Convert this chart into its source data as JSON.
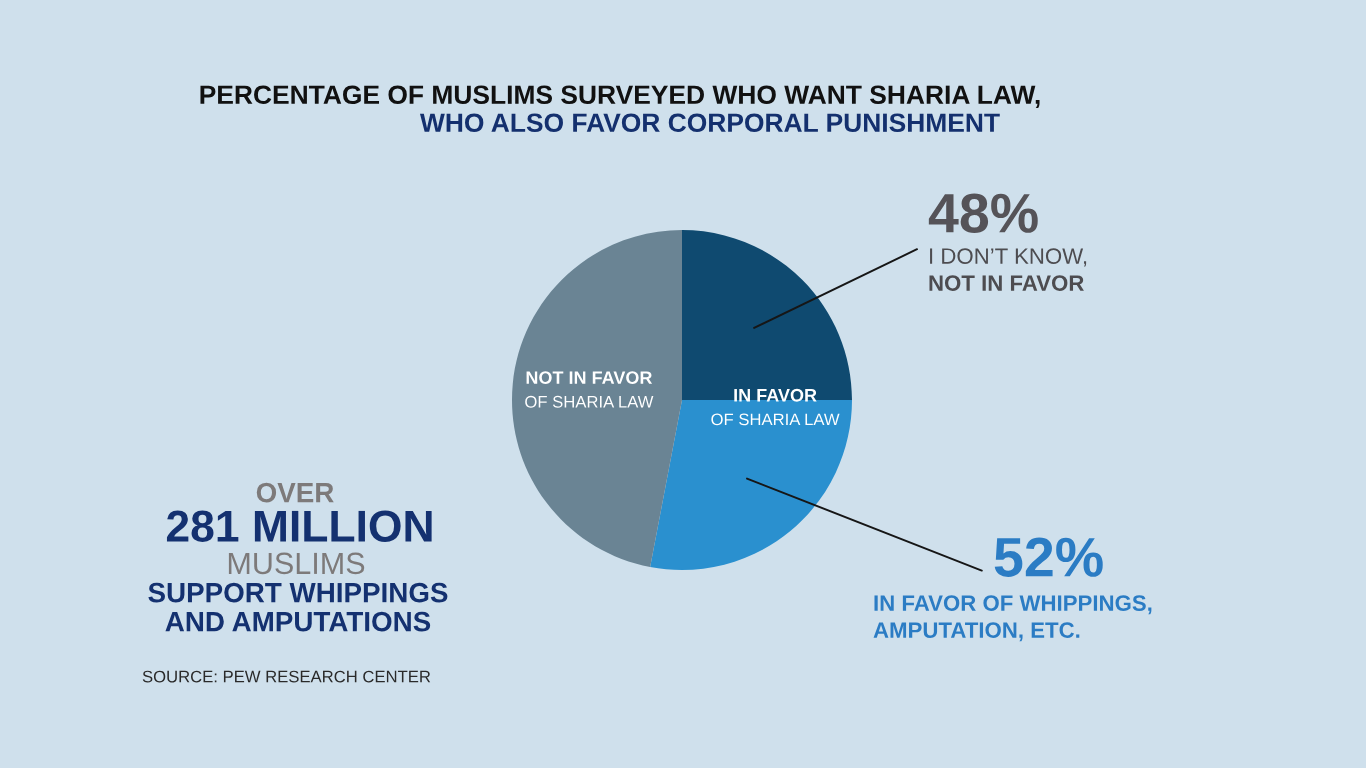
{
  "chart_data": {
    "type": "pie",
    "title": "PERCENTAGE OF MUSLIMS SURVEYED WHO WANT SHARIA LAW,",
    "subtitle": "WHO ALSO FAVOR CORPORAL PUNISHMENT",
    "categories": [
      "I DON’T KNOW,\nNOT IN FAVOR",
      "IN FAVOR OF WHIPPINGS,\nAMPUTATION, ETC.",
      "NOT IN FAVOR\nOF SHARIA LAW"
    ],
    "values": [
      25,
      28,
      47
    ],
    "colors": [
      "#0f4a70",
      "#2a90cf",
      "#6a8494"
    ],
    "annotations": [
      "IN FAVOR\nOF SHARIA LAW",
      "48%",
      "52%",
      "OVER",
      "281 MILLION",
      "MUSLIMS",
      "SUPPORT WHIPPINGS\nAND AMPUTATIONS",
      "SOURCE: PEW RESEARCH CENTER"
    ]
  }
}
